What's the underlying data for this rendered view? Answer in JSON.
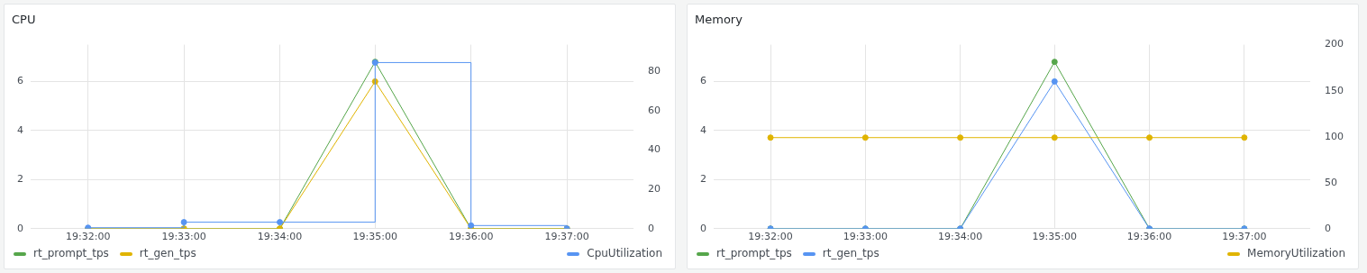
{
  "chart_data": [
    {
      "type": "line",
      "title": "CPU",
      "legend": "bottom",
      "grid": true,
      "marker": "circle",
      "x": [
        19.5333,
        19.55,
        19.5667,
        19.5833,
        19.6,
        19.6167
      ],
      "xlim": [
        19.5233,
        19.6283
      ],
      "xticks": [
        {
          "value": 19.5333,
          "label": "19:32:00"
        },
        {
          "value": 19.55,
          "label": "19:33:00"
        },
        {
          "value": 19.5667,
          "label": "19:34:00"
        },
        {
          "value": 19.5833,
          "label": "19:35:00"
        },
        {
          "value": 19.6,
          "label": "19:36:00"
        },
        {
          "value": 19.6167,
          "label": "19:37:00"
        }
      ],
      "ylim": [
        0,
        7.5
      ],
      "yticks": [
        0,
        2,
        4,
        6
      ],
      "y2lim": [
        0,
        93.7
      ],
      "y2ticks": [
        0,
        20,
        40,
        60,
        80
      ],
      "series": [
        {
          "name": "rt_prompt_tps",
          "color": "#56a64b",
          "values": [
            0,
            0,
            0,
            6.8,
            0,
            0
          ]
        },
        {
          "name": "rt_gen_tps",
          "color": "#e0b400",
          "values": [
            0,
            0,
            0,
            6,
            0,
            0
          ]
        },
        {
          "name": "CpuUtilization",
          "color": "#5794f2",
          "type": "step",
          "axis": "y2",
          "values": [
            0.5,
            3.3,
            3.3,
            84.6,
            1.6,
            0
          ]
        }
      ]
    },
    {
      "type": "line",
      "title": "Memory",
      "legend": "bottom",
      "grid": true,
      "marker": "circle",
      "x": [
        19.5333,
        19.55,
        19.5667,
        19.5833,
        19.6,
        19.6167
      ],
      "xlim": [
        19.5233,
        19.6283
      ],
      "xticks": [
        {
          "value": 19.5333,
          "label": "19:32:00"
        },
        {
          "value": 19.55,
          "label": "19:33:00"
        },
        {
          "value": 19.5667,
          "label": "19:34:00"
        },
        {
          "value": 19.5833,
          "label": "19:35:00"
        },
        {
          "value": 19.6,
          "label": "19:36:00"
        },
        {
          "value": 19.6167,
          "label": "19:37:00"
        }
      ],
      "ylim": [
        0,
        7.5
      ],
      "yticks": [
        0,
        2,
        4,
        6
      ],
      "y2lim": [
        0,
        200
      ],
      "y2ticks": [
        0,
        50,
        100,
        150,
        200
      ],
      "series": [
        {
          "name": "rt_prompt_tps",
          "color": "#56a64b",
          "values": [
            0,
            0,
            0,
            6.8,
            0,
            0
          ]
        },
        {
          "name": "rt_gen_tps",
          "color": "#5794f2",
          "values": [
            0,
            0,
            0,
            6,
            0,
            0
          ]
        },
        {
          "name": "MemoryUtilization",
          "color": "#e0b400",
          "axis": "y2",
          "values": [
            99,
            99,
            99,
            99,
            99,
            99
          ]
        }
      ]
    }
  ]
}
